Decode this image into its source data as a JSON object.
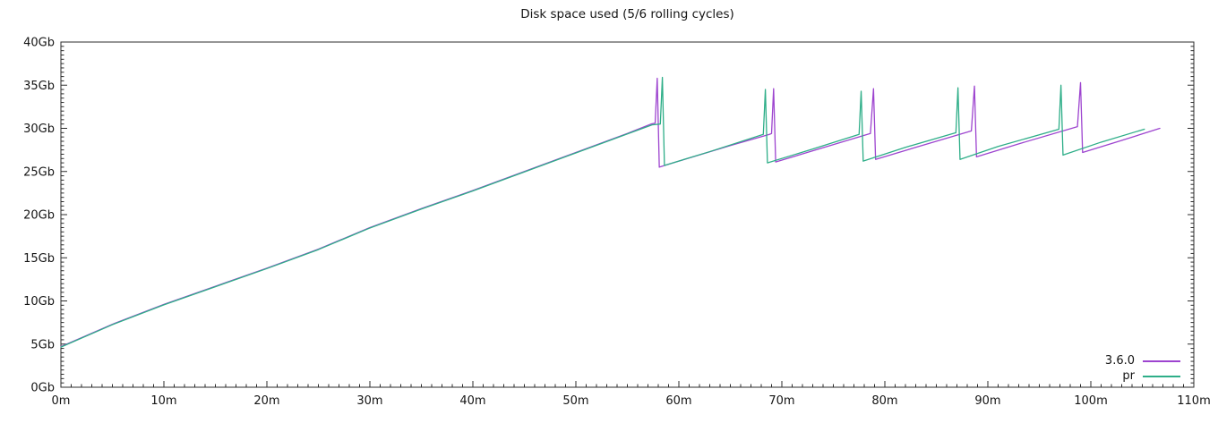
{
  "chart_data": {
    "type": "line",
    "title": "Disk space used (5/6 rolling cycles)",
    "xlabel": "",
    "ylabel": "",
    "xlim": [
      0,
      110
    ],
    "ylim": [
      0,
      40
    ],
    "grid": false,
    "legend_position": "bottom-right",
    "x_tick_values": [
      0,
      10,
      20,
      30,
      40,
      50,
      60,
      70,
      80,
      90,
      100,
      110
    ],
    "x_tick_labels": [
      "0m",
      "10m",
      "20m",
      "30m",
      "40m",
      "50m",
      "60m",
      "70m",
      "80m",
      "90m",
      "100m",
      "110m"
    ],
    "x_minor_interval": 1,
    "y_tick_values": [
      0,
      5,
      10,
      15,
      20,
      25,
      30,
      35,
      40
    ],
    "y_tick_labels": [
      "0Gb",
      "5Gb",
      "10Gb",
      "15Gb",
      "20Gb",
      "25Gb",
      "30Gb",
      "35Gb",
      "40Gb"
    ],
    "y_minor_interval": 0.5,
    "axis_color": "#2b2b2b",
    "text_color": "#141414",
    "series": [
      {
        "name": "3.6.0",
        "color": "#9d44cf",
        "points": [
          [
            0,
            4.7
          ],
          [
            5,
            7.3
          ],
          [
            10,
            9.6
          ],
          [
            15,
            11.7
          ],
          [
            20,
            13.8
          ],
          [
            25,
            16.0
          ],
          [
            30,
            18.5
          ],
          [
            35,
            20.7
          ],
          [
            40,
            22.8
          ],
          [
            45,
            25.0
          ],
          [
            50,
            27.2
          ],
          [
            55,
            29.4
          ],
          [
            57.3,
            30.5
          ],
          [
            57.7,
            30.6
          ],
          [
            57.9,
            35.8
          ],
          [
            58.1,
            25.5
          ],
          [
            60,
            26.2
          ],
          [
            65,
            28.0
          ],
          [
            68.8,
            29.3
          ],
          [
            69.0,
            29.4
          ],
          [
            69.2,
            34.6
          ],
          [
            69.4,
            26.1
          ],
          [
            73,
            27.4
          ],
          [
            78.6,
            29.4
          ],
          [
            78.9,
            34.6
          ],
          [
            79.1,
            26.4
          ],
          [
            83,
            27.8
          ],
          [
            88.4,
            29.7
          ],
          [
            88.7,
            34.9
          ],
          [
            88.9,
            26.7
          ],
          [
            93,
            28.2
          ],
          [
            98.7,
            30.2
          ],
          [
            99.0,
            35.3
          ],
          [
            99.2,
            27.2
          ],
          [
            103,
            28.6
          ],
          [
            106.7,
            30.0
          ]
        ]
      },
      {
        "name": "pr",
        "color": "#2eae88",
        "points": [
          [
            0,
            4.65
          ],
          [
            5,
            7.25
          ],
          [
            10,
            9.55
          ],
          [
            15,
            11.65
          ],
          [
            20,
            13.75
          ],
          [
            25,
            15.95
          ],
          [
            30,
            18.45
          ],
          [
            35,
            20.65
          ],
          [
            40,
            22.75
          ],
          [
            45,
            24.95
          ],
          [
            50,
            27.15
          ],
          [
            55,
            29.35
          ],
          [
            57.4,
            30.4
          ],
          [
            58.2,
            30.5
          ],
          [
            58.4,
            35.9
          ],
          [
            58.6,
            25.7
          ],
          [
            63,
            27.3
          ],
          [
            68.2,
            29.3
          ],
          [
            68.4,
            34.5
          ],
          [
            68.6,
            26.0
          ],
          [
            73,
            27.6
          ],
          [
            77.5,
            29.3
          ],
          [
            77.7,
            34.3
          ],
          [
            77.9,
            26.2
          ],
          [
            82,
            27.8
          ],
          [
            86.9,
            29.5
          ],
          [
            87.1,
            34.7
          ],
          [
            87.3,
            26.4
          ],
          [
            91,
            27.9
          ],
          [
            96.9,
            29.9
          ],
          [
            97.1,
            35.0
          ],
          [
            97.3,
            26.9
          ],
          [
            101,
            28.4
          ],
          [
            105.2,
            29.9
          ]
        ]
      }
    ]
  }
}
